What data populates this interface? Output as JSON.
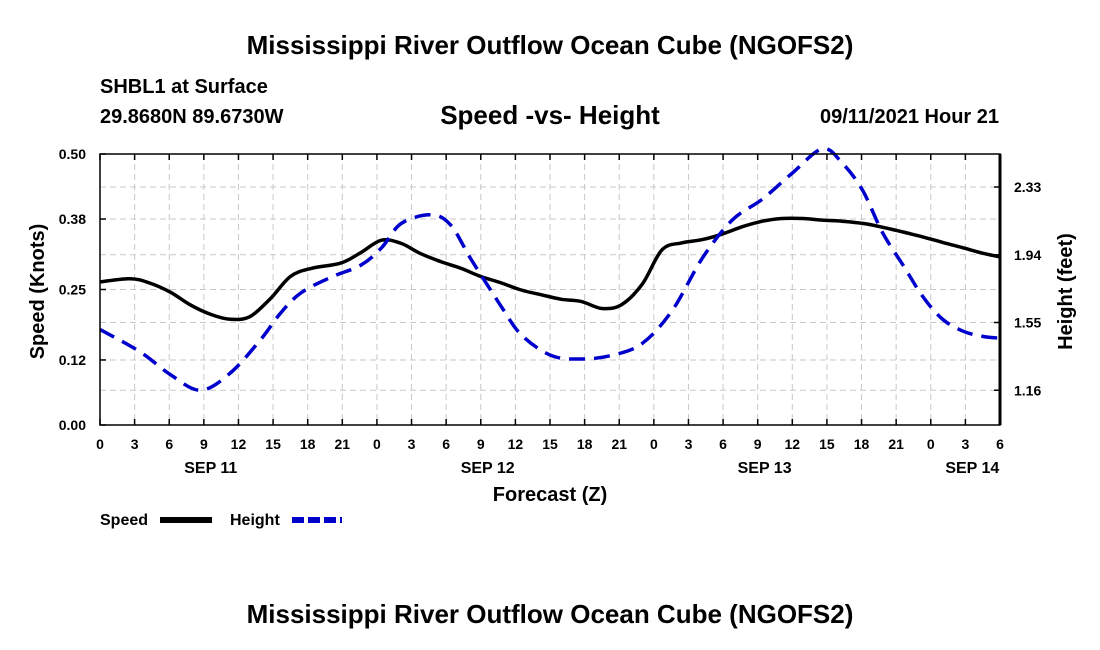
{
  "page": {
    "title_top": "Mississippi River Outflow Ocean Cube (NGOFS2)",
    "title_bottom": "Mississippi River Outflow Ocean Cube (NGOFS2)",
    "station": "SHBL1 at Surface",
    "coordinates": "29.8680N  89.6730W",
    "subtitle": "Speed -vs- Height",
    "datetime": "09/11/2021 Hour 21"
  },
  "chart_data": {
    "type": "line",
    "title": "Speed -vs- Height",
    "xlabel": "Forecast (Z)",
    "ylabel": "Speed (Knots)",
    "y2label": "Height (feet)",
    "xlim": [
      0,
      78
    ],
    "ylim": [
      0,
      0.5
    ],
    "y2lim": [
      0.96,
      2.52
    ],
    "grid": true,
    "x_ticks": [
      0,
      3,
      6,
      9,
      12,
      15,
      18,
      21,
      24,
      27,
      30,
      33,
      36,
      39,
      42,
      45,
      48,
      51,
      54,
      57,
      60,
      63,
      66,
      69,
      72,
      75,
      78
    ],
    "x_tick_labels": [
      "0",
      "3",
      "6",
      "9",
      "12",
      "15",
      "18",
      "21",
      "0",
      "3",
      "6",
      "9",
      "12",
      "15",
      "18",
      "21",
      "0",
      "3",
      "6",
      "9",
      "12",
      "15",
      "18",
      "21",
      "0",
      "3",
      "6"
    ],
    "date_labels": [
      {
        "x": 9.6,
        "text": "SEP 11"
      },
      {
        "x": 33.6,
        "text": "SEP 12"
      },
      {
        "x": 57.6,
        "text": "SEP 13"
      },
      {
        "x": 75.6,
        "text": "SEP 14"
      }
    ],
    "y_ticks": [
      0,
      0.12,
      0.25,
      0.38,
      0.5
    ],
    "y_tick_labels": [
      "0.00",
      "0.12",
      "0.25",
      "0.38",
      "0.50"
    ],
    "y2_ticks": [
      1.16,
      1.55,
      1.94,
      2.33
    ],
    "y2_tick_labels": [
      "1.16",
      "1.55",
      "1.94",
      "2.33"
    ],
    "series": [
      {
        "name": "Speed",
        "axis": "left",
        "color": "#000000",
        "style": "solid",
        "x": [
          0,
          2.6,
          4.3,
          6.1,
          7.8,
          9.6,
          11.3,
          13.0,
          14.8,
          16.5,
          18.3,
          20.9,
          22.6,
          24.4,
          26.1,
          27.8,
          29.6,
          31.3,
          33.0,
          34.8,
          36.5,
          38.3,
          40.0,
          41.7,
          43.5,
          45.2,
          47.0,
          48.7,
          50.4,
          52.2,
          53.9,
          55.7,
          57.4,
          59.1,
          60.9,
          62.6,
          64.3,
          66.1,
          67.8,
          69.6,
          71.3,
          73.0,
          74.8,
          76.5,
          78
        ],
        "values": [
          0.264,
          0.27,
          0.262,
          0.245,
          0.222,
          0.204,
          0.195,
          0.2,
          0.234,
          0.274,
          0.289,
          0.299,
          0.318,
          0.341,
          0.335,
          0.316,
          0.301,
          0.289,
          0.274,
          0.262,
          0.249,
          0.24,
          0.232,
          0.228,
          0.215,
          0.222,
          0.26,
          0.323,
          0.336,
          0.342,
          0.352,
          0.366,
          0.376,
          0.381,
          0.381,
          0.378,
          0.376,
          0.372,
          0.365,
          0.356,
          0.347,
          0.337,
          0.327,
          0.317,
          0.31
        ]
      },
      {
        "name": "Height",
        "axis": "right",
        "color": "#0000cc",
        "style": "dashed",
        "x": [
          0,
          3.5,
          6.1,
          8.7,
          11.3,
          13.9,
          15.6,
          17.4,
          20.0,
          22.6,
          24.4,
          26.1,
          28.7,
          30.4,
          32.2,
          34.8,
          36.5,
          39.1,
          41.7,
          44.3,
          47.0,
          49.6,
          52.2,
          54.8,
          57.4,
          60.0,
          62.6,
          64.3,
          66.1,
          67.8,
          69.6,
          71.3,
          73.0,
          74.8,
          76.5,
          78
        ],
        "values": [
          1.51,
          1.38,
          1.25,
          1.16,
          1.26,
          1.45,
          1.6,
          1.72,
          1.81,
          1.88,
          1.98,
          2.12,
          2.17,
          2.11,
          1.91,
          1.64,
          1.48,
          1.36,
          1.34,
          1.36,
          1.43,
          1.62,
          1.92,
          2.14,
          2.26,
          2.41,
          2.55,
          2.47,
          2.31,
          2.07,
          1.88,
          1.7,
          1.57,
          1.5,
          1.47,
          1.46
        ]
      }
    ]
  },
  "legend": {
    "items": [
      {
        "label": "Speed",
        "color": "#000000",
        "style": "solid"
      },
      {
        "label": "Height",
        "color": "#0000cc",
        "style": "dashed"
      }
    ]
  }
}
